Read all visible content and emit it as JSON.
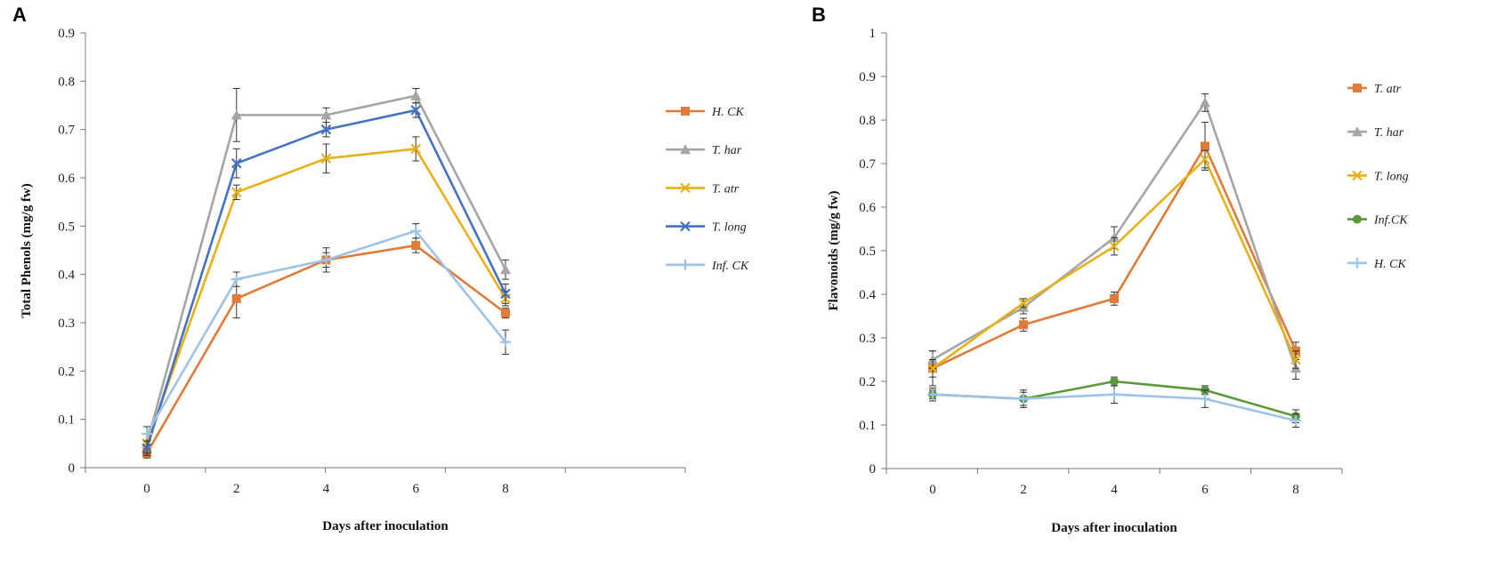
{
  "chart_data": [
    {
      "type": "line",
      "panel_label": "A",
      "xlabel": "Days after inoculation",
      "ylabel": "Total Phenols (mg/g fw)",
      "x": [
        0,
        2,
        4,
        6,
        8
      ],
      "x_ticks": [
        "0",
        "2",
        "4",
        "6",
        "8"
      ],
      "y_ticks": [
        "0",
        "0.1",
        "0.2",
        "0.3",
        "0.4",
        "0.5",
        "0.6",
        "0.7",
        "0.8",
        "0.9"
      ],
      "ylim": [
        0,
        0.9
      ],
      "grid": false,
      "legend_position": "right",
      "series": [
        {
          "name": "H. CK",
          "color": "#e07b39",
          "marker": "square",
          "values": [
            0.03,
            0.35,
            0.43,
            0.46,
            0.32
          ],
          "errors": [
            0.01,
            0.04,
            0.025,
            0.015,
            0.01
          ]
        },
        {
          "name": "T. har",
          "color": "#a5a5a5",
          "marker": "triangle",
          "values": [
            0.05,
            0.73,
            0.73,
            0.77,
            0.41
          ],
          "errors": [
            0.02,
            0.055,
            0.015,
            0.015,
            0.02
          ]
        },
        {
          "name": "T. atr",
          "color": "#e8b017",
          "marker": "x",
          "values": [
            0.05,
            0.57,
            0.64,
            0.66,
            0.35
          ],
          "errors": [
            0.02,
            0.015,
            0.03,
            0.025,
            0.015
          ]
        },
        {
          "name": "T. long",
          "color": "#4472c4",
          "marker": "x",
          "values": [
            0.04,
            0.63,
            0.7,
            0.74,
            0.36
          ],
          "errors": [
            0.015,
            0.03,
            0.015,
            0.015,
            0.02
          ]
        },
        {
          "name": "Inf. CK",
          "color": "#9dc3e6",
          "marker": "plus",
          "values": [
            0.07,
            0.39,
            0.43,
            0.49,
            0.26
          ],
          "errors": [
            0.015,
            0.015,
            0.015,
            0.015,
            0.025
          ]
        }
      ]
    },
    {
      "type": "line",
      "panel_label": "B",
      "xlabel": "Days after inoculation",
      "ylabel": "Flavonoids (mg/g fw)",
      "x": [
        0,
        2,
        4,
        6,
        8
      ],
      "x_ticks": [
        "0",
        "2",
        "4",
        "6",
        "8"
      ],
      "y_ticks": [
        "0",
        "0.1",
        "0.2",
        "0.3",
        "0.4",
        "0.5",
        "0.6",
        "0.7",
        "0.8",
        "0.9",
        "1"
      ],
      "ylim": [
        0,
        1
      ],
      "grid": false,
      "legend_position": "right",
      "series": [
        {
          "name": "T. atr",
          "color": "#e07b39",
          "marker": "square",
          "values": [
            0.23,
            0.33,
            0.39,
            0.74,
            0.27
          ],
          "errors": [
            0.04,
            0.015,
            0.015,
            0.055,
            0.02
          ]
        },
        {
          "name": "T. har",
          "color": "#a5a5a5",
          "marker": "triangle",
          "values": [
            0.25,
            0.37,
            0.53,
            0.84,
            0.23
          ],
          "errors": [
            0.02,
            0.015,
            0.025,
            0.02,
            0.025
          ]
        },
        {
          "name": "T. long",
          "color": "#e8b017",
          "marker": "x",
          "values": [
            0.23,
            0.38,
            0.51,
            0.71,
            0.25
          ],
          "errors": [
            0.02,
            0.01,
            0.02,
            0.02,
            0.02
          ]
        },
        {
          "name": "Inf.CK",
          "color": "#5b9a3c",
          "marker": "circle",
          "values": [
            0.17,
            0.16,
            0.2,
            0.18,
            0.12
          ],
          "errors": [
            0.015,
            0.015,
            0.01,
            0.01,
            0.015
          ]
        },
        {
          "name": "H. CK",
          "color": "#9dc3e6",
          "marker": "plus",
          "values": [
            0.17,
            0.16,
            0.17,
            0.16,
            0.11
          ],
          "errors": [
            0.01,
            0.02,
            0.02,
            0.02,
            0.015
          ]
        }
      ]
    }
  ]
}
